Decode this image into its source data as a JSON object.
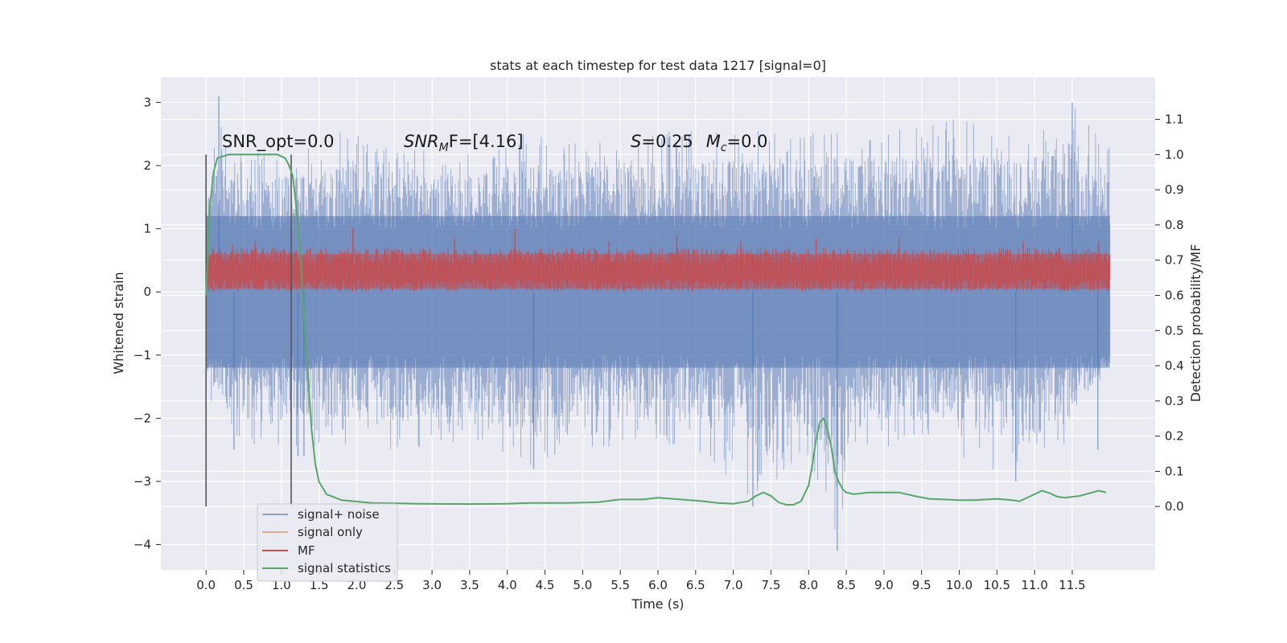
{
  "chart_data": {
    "type": "line",
    "title": "stats at each timestep for test data 1217 [signal=0]",
    "xlabel": "Time (s)",
    "ylabel": "Whitened strain",
    "y2label": "Detection probability/MF",
    "xlim": [
      -0.6,
      12.6
    ],
    "ylim": [
      -4.4,
      3.4
    ],
    "y2lim": [
      -0.18,
      1.22
    ],
    "x_ticks": [
      0.0,
      0.5,
      1.0,
      1.5,
      2.0,
      2.5,
      3.0,
      3.5,
      4.0,
      4.5,
      5.0,
      5.5,
      6.0,
      6.5,
      7.0,
      7.5,
      8.0,
      8.5,
      9.0,
      9.5,
      10.0,
      10.5,
      11.0,
      11.5
    ],
    "x_tick_labels": [
      "0.0",
      "0.5",
      "1.0",
      "1.5",
      "2.0",
      "2.5",
      "3.0",
      "3.5",
      "4.0",
      "4.5",
      "5.0",
      "5.5",
      "6.0",
      "6.5",
      "7.0",
      "7.5",
      "8.0",
      "8.5",
      "9.0",
      "9.5",
      "10.0",
      "10.5",
      "11.0",
      "11.5"
    ],
    "y_ticks": [
      3,
      2,
      1,
      0,
      -1,
      -2,
      -3,
      -4
    ],
    "y_tick_labels": [
      "3",
      "2",
      "1",
      "0",
      "−1",
      "−2",
      "−3",
      "−4"
    ],
    "y2_ticks": [
      1.1,
      1.0,
      0.9,
      0.8,
      0.7,
      0.6,
      0.5,
      0.4,
      0.3,
      0.2,
      0.1,
      0.0
    ],
    "y2_tick_labels": [
      "1.1",
      "1.0",
      "0.9",
      "0.8",
      "0.7",
      "0.6",
      "0.5",
      "0.4",
      "0.3",
      "0.2",
      "0.1",
      "0.0"
    ],
    "grid": true,
    "legend_position": "lower-left",
    "annotations": {
      "snr_opt": "SNR_opt=0.0",
      "snr_mf_main": "SNR",
      "snr_mf_sub": "M",
      "snr_mf_rest": "F=[4.16]",
      "s_main": "S",
      "s_value": "=0.25",
      "mc_main": "M",
      "mc_sub": "c",
      "mc_value": "=0.0"
    },
    "vertical_lines": [
      {
        "x": 0.0,
        "y2_range": [
          0.0,
          1.0
        ]
      },
      {
        "x": 1.13,
        "y2_range": [
          0.0,
          1.0
        ]
      }
    ],
    "series": [
      {
        "name": "signal+ noise",
        "color": "#4c72b0",
        "axis": "left",
        "t_range": [
          0.0,
          12.0
        ],
        "envelope_upper": [
          [
            0.0,
            1.4
          ],
          [
            0.17,
            3.1
          ],
          [
            0.3,
            2.2
          ],
          [
            0.8,
            2.3
          ],
          [
            1.45,
            2.3
          ],
          [
            1.8,
            2.6
          ],
          [
            2.4,
            2.4
          ],
          [
            3.3,
            2.2
          ],
          [
            4.2,
            2.5
          ],
          [
            5.0,
            2.4
          ],
          [
            5.6,
            2.5
          ],
          [
            6.4,
            2.6
          ],
          [
            7.1,
            2.6
          ],
          [
            7.8,
            2.5
          ],
          [
            8.4,
            2.6
          ],
          [
            9.4,
            2.6
          ],
          [
            9.95,
            2.8
          ],
          [
            10.8,
            2.5
          ],
          [
            11.1,
            2.7
          ],
          [
            11.5,
            3.0
          ],
          [
            11.95,
            2.3
          ]
        ],
        "envelope_lower": [
          [
            0.0,
            -1.8
          ],
          [
            0.2,
            -2.2
          ],
          [
            0.8,
            -2.6
          ],
          [
            1.3,
            -2.5
          ],
          [
            2.1,
            -2.6
          ],
          [
            3.5,
            -2.4
          ],
          [
            4.35,
            -2.8
          ],
          [
            5.3,
            -2.5
          ],
          [
            6.5,
            -2.5
          ],
          [
            7.3,
            -3.4
          ],
          [
            7.9,
            -2.6
          ],
          [
            8.38,
            -4.1
          ],
          [
            8.6,
            -2.4
          ],
          [
            9.6,
            -2.5
          ],
          [
            10.75,
            -3.0
          ],
          [
            11.4,
            -2.5
          ],
          [
            11.95,
            -1.3
          ]
        ],
        "spikes": [
          [
            0.17,
            3.1
          ],
          [
            0.37,
            -2.5
          ],
          [
            1.22,
            -2.6
          ],
          [
            1.3,
            -2.6
          ],
          [
            4.35,
            -2.8
          ],
          [
            7.26,
            -3.4
          ],
          [
            8.38,
            -4.1
          ],
          [
            10.75,
            -3.0
          ],
          [
            11.5,
            3.0
          ],
          [
            11.84,
            -2.5
          ]
        ]
      },
      {
        "name": "signal only",
        "color": "#dd8452",
        "axis": "left",
        "values_description": ""
      },
      {
        "name": "MF",
        "color": "#c44e52",
        "axis": "left",
        "t_range": [
          0.0,
          12.0
        ],
        "band_upper": 0.6,
        "band_lower": 0.05,
        "peaks": [
          [
            0.0,
            -0.3
          ],
          [
            0.35,
            0.75
          ],
          [
            0.65,
            0.8
          ],
          [
            1.95,
            1.0
          ],
          [
            3.3,
            0.85
          ],
          [
            4.1,
            1.0
          ],
          [
            5.35,
            0.8
          ],
          [
            6.25,
            0.9
          ],
          [
            7.1,
            0.8
          ],
          [
            8.1,
            0.85
          ],
          [
            9.2,
            0.85
          ],
          [
            10.85,
            0.8
          ],
          [
            11.85,
            0.8
          ]
        ]
      },
      {
        "name": "signal statistics",
        "color": "#55a868",
        "axis": "right",
        "x": [
          0.0,
          0.05,
          0.1,
          0.15,
          0.3,
          0.5,
          0.7,
          0.85,
          0.95,
          1.05,
          1.1,
          1.15,
          1.2,
          1.25,
          1.3,
          1.35,
          1.4,
          1.45,
          1.5,
          1.6,
          1.8,
          2.2,
          2.8,
          3.5,
          4.0,
          4.3,
          4.8,
          5.2,
          5.5,
          5.8,
          6.0,
          6.3,
          6.6,
          6.8,
          7.0,
          7.2,
          7.3,
          7.4,
          7.5,
          7.6,
          7.7,
          7.8,
          7.9,
          8.0,
          8.05,
          8.1,
          8.15,
          8.2,
          8.25,
          8.3,
          8.35,
          8.4,
          8.45,
          8.5,
          8.6,
          8.8,
          9.0,
          9.2,
          9.4,
          9.6,
          9.8,
          10.0,
          10.2,
          10.5,
          10.7,
          10.8,
          11.0,
          11.1,
          11.2,
          11.3,
          11.4,
          11.6,
          11.8,
          11.85,
          11.95
        ],
        "values": [
          0.6,
          0.85,
          0.95,
          0.99,
          1.0,
          1.0,
          1.0,
          1.0,
          1.0,
          0.99,
          0.97,
          0.94,
          0.85,
          0.72,
          0.55,
          0.38,
          0.22,
          0.12,
          0.07,
          0.035,
          0.018,
          0.01,
          0.008,
          0.007,
          0.008,
          0.01,
          0.01,
          0.012,
          0.02,
          0.02,
          0.025,
          0.02,
          0.015,
          0.01,
          0.008,
          0.015,
          0.03,
          0.04,
          0.03,
          0.012,
          0.005,
          0.005,
          0.015,
          0.06,
          0.12,
          0.19,
          0.24,
          0.25,
          0.22,
          0.17,
          0.1,
          0.07,
          0.05,
          0.04,
          0.035,
          0.04,
          0.04,
          0.04,
          0.03,
          0.022,
          0.02,
          0.018,
          0.018,
          0.022,
          0.018,
          0.015,
          0.035,
          0.045,
          0.038,
          0.028,
          0.025,
          0.03,
          0.042,
          0.045,
          0.04
        ]
      }
    ]
  }
}
